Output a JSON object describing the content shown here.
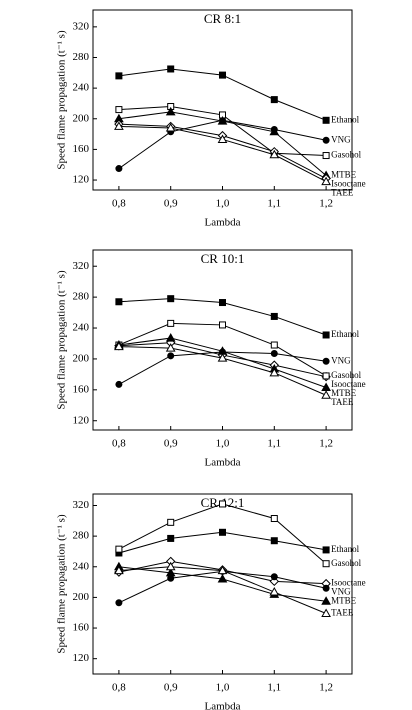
{
  "chart_data": [
    {
      "type": "line",
      "title": "CR 8:1",
      "x_label": "Lambda",
      "y_label": "Speed flame propagation (t⁻¹ s)",
      "x": [
        0.8,
        0.9,
        1.0,
        1.1,
        1.2
      ],
      "xlim": [
        0.75,
        1.25
      ],
      "xticks": [
        {
          "value": 0.8,
          "label": "0,8"
        },
        {
          "value": 0.9,
          "label": "0,9"
        },
        {
          "value": 1.0,
          "label": "1,0"
        },
        {
          "value": 1.1,
          "label": "1,1"
        },
        {
          "value": 1.2,
          "label": "1,2"
        }
      ],
      "ylim": [
        107,
        342
      ],
      "yticks": [
        120,
        160,
        200,
        240,
        280,
        320
      ],
      "series": [
        {
          "name": "Ethanol",
          "color": "#000000",
          "marker": "square-filled",
          "values": [
            256,
            265,
            257,
            225,
            198
          ]
        },
        {
          "name": "VNG",
          "color": "#000000",
          "marker": "circle-filled",
          "values": [
            135,
            183,
            198,
            186,
            172
          ]
        },
        {
          "name": "Gasohol",
          "color": "#000000",
          "marker": "square-open",
          "values": [
            212,
            216,
            205,
            155,
            152
          ]
        },
        {
          "name": "MTBE",
          "color": "#000000",
          "marker": "triangle-filled",
          "values": [
            200,
            209,
            197,
            183,
            126
          ]
        },
        {
          "name": "Isooctane",
          "color": "#000000",
          "marker": "diamond-open",
          "values": [
            193,
            190,
            178,
            157,
            122
          ]
        },
        {
          "name": "TAEE",
          "color": "#000000",
          "marker": "triangle-open",
          "values": [
            190,
            188,
            173,
            153,
            118
          ]
        }
      ]
    },
    {
      "type": "line",
      "title": "CR 10:1",
      "x_label": "Lambda",
      "y_label": "Speed flame propagation (t⁻¹ s)",
      "x": [
        0.8,
        0.9,
        1.0,
        1.1,
        1.2
      ],
      "xlim": [
        0.75,
        1.25
      ],
      "xticks": [
        {
          "value": 0.8,
          "label": "0,8"
        },
        {
          "value": 0.9,
          "label": "0,9"
        },
        {
          "value": 1.0,
          "label": "1,0"
        },
        {
          "value": 1.1,
          "label": "1,1"
        },
        {
          "value": 1.2,
          "label": "1,2"
        }
      ],
      "ylim": [
        108,
        341
      ],
      "yticks": [
        120,
        160,
        200,
        240,
        280,
        320
      ],
      "series": [
        {
          "name": "Ethanol",
          "color": "#000000",
          "marker": "square-filled",
          "values": [
            274,
            278,
            273,
            255,
            231
          ]
        },
        {
          "name": "VNG",
          "color": "#000000",
          "marker": "circle-filled",
          "values": [
            167,
            204,
            209,
            207,
            197
          ]
        },
        {
          "name": "Isooctane",
          "color": "#000000",
          "marker": "diamond-open",
          "values": [
            217,
            221,
            205,
            192,
            177
          ]
        },
        {
          "name": "Gasohol",
          "color": "#000000",
          "marker": "square-open",
          "values": [
            218,
            246,
            244,
            218,
            178
          ]
        },
        {
          "name": "MTBE",
          "color": "#000000",
          "marker": "triangle-filled",
          "values": [
            218,
            227,
            210,
            187,
            163
          ]
        },
        {
          "name": "TAEE",
          "color": "#000000",
          "marker": "triangle-open",
          "values": [
            216,
            214,
            201,
            182,
            153
          ]
        }
      ]
    },
    {
      "type": "line",
      "title": "CR 12:1",
      "x_label": "Lambda",
      "y_label": "Speed flame propagation (t⁻¹ s)",
      "x": [
        0.8,
        0.9,
        1.0,
        1.1,
        1.2
      ],
      "xlim": [
        0.75,
        1.25
      ],
      "xticks": [
        {
          "value": 0.8,
          "label": "0,8"
        },
        {
          "value": 0.9,
          "label": "0,9"
        },
        {
          "value": 1.0,
          "label": "1,0"
        },
        {
          "value": 1.1,
          "label": "1,1"
        },
        {
          "value": 1.2,
          "label": "1,2"
        }
      ],
      "ylim": [
        100,
        335
      ],
      "yticks": [
        120,
        160,
        200,
        240,
        280,
        320
      ],
      "series": [
        {
          "name": "Ethanol",
          "color": "#000000",
          "marker": "square-filled",
          "values": [
            258,
            277,
            285,
            274,
            262
          ]
        },
        {
          "name": "Gasohol",
          "color": "#000000",
          "marker": "square-open",
          "values": [
            263,
            298,
            322,
            303,
            244
          ]
        },
        {
          "name": "Isooctane",
          "color": "#000000",
          "marker": "diamond-open",
          "values": [
            233,
            247,
            236,
            221,
            218
          ]
        },
        {
          "name": "VNG",
          "color": "#000000",
          "marker": "circle-filled",
          "values": [
            193,
            225,
            234,
            227,
            212
          ]
        },
        {
          "name": "MTBE",
          "color": "#000000",
          "marker": "triangle-filled",
          "values": [
            240,
            232,
            224,
            204,
            195
          ]
        },
        {
          "name": "TAEE",
          "color": "#000000",
          "marker": "triangle-open",
          "values": [
            235,
            240,
            235,
            207,
            179
          ]
        }
      ]
    }
  ]
}
